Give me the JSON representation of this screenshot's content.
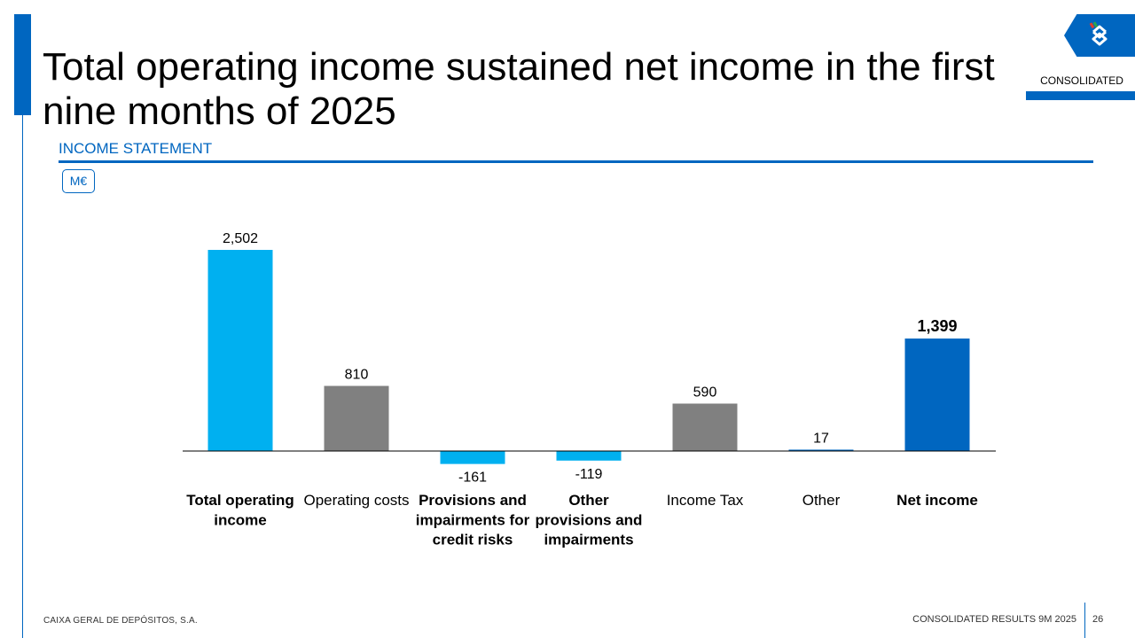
{
  "header": {
    "title": "Total operating income sustained net income in the first nine months of 2025",
    "badge": "CONSOLIDATED"
  },
  "section": {
    "title": "INCOME STATEMENT",
    "unit": "M€"
  },
  "footer": {
    "company": "CAIXA GERAL DE DEPÓSITOS, S.A.",
    "report": "CONSOLIDATED RESULTS 9M 2025",
    "page": "26"
  },
  "colors": {
    "brand_blue": "#0066c0",
    "light_blue": "#00b0f0",
    "gray": "#808080"
  },
  "chart_data": {
    "type": "bar",
    "title": "",
    "xlabel": "",
    "ylabel": "",
    "unit": "M€",
    "ylim": [
      -200,
      2600
    ],
    "categories": [
      {
        "label": "Total operating income",
        "value": 2502,
        "value_label": "2,502",
        "color": "#00b0f0",
        "bold": true
      },
      {
        "label": "Operating costs",
        "value": 810,
        "value_label": "810",
        "color": "#808080",
        "bold": false
      },
      {
        "label": "Provisions and impairments for credit risks",
        "value": -161,
        "value_label": "-161",
        "color": "#00b0f0",
        "bold": true
      },
      {
        "label": "Other provisions and impairments",
        "value": -119,
        "value_label": "-119",
        "color": "#00b0f0",
        "bold": true
      },
      {
        "label": "Income Tax",
        "value": 590,
        "value_label": "590",
        "color": "#808080",
        "bold": false
      },
      {
        "label": "Other",
        "value": 17,
        "value_label": "17",
        "color": "#0066c0",
        "bold": false
      },
      {
        "label": "Net income",
        "value": 1399,
        "value_label": "1,399",
        "color": "#0066c0",
        "bold": true
      }
    ]
  }
}
